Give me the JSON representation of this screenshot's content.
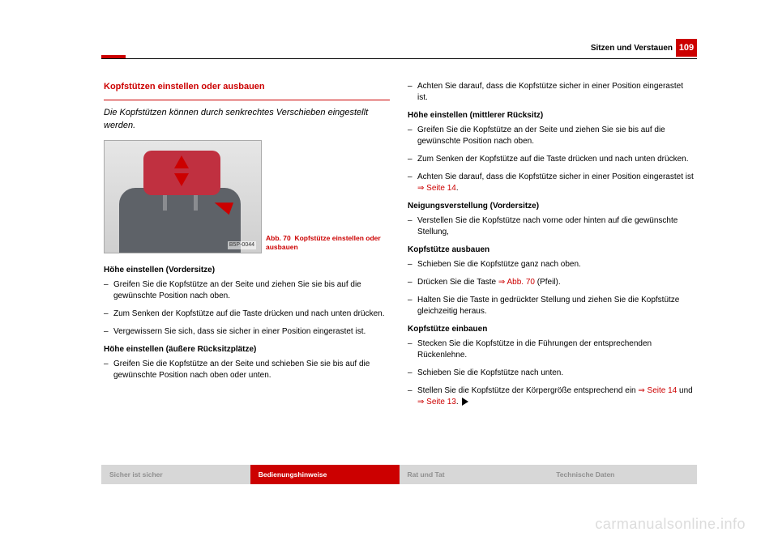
{
  "header": {
    "chapter": "Sitzen und Verstauen",
    "page_number": "109"
  },
  "figure": {
    "code": "B5P-0044",
    "caption_prefix": "Abb. 70",
    "caption_text": "Kopfstütze einstellen oder ausbauen"
  },
  "left": {
    "heading": "Kopfstützen einstellen oder ausbauen",
    "intro": "Die Kopfstützen können durch senkrechtes Verschieben eingestellt werden.",
    "sub1": "Höhe einstellen (Vordersitze)",
    "s1i1": "Greifen Sie die Kopfstütze an der Seite und ziehen Sie sie bis auf die gewünschte Position nach oben.",
    "s1i2": "Zum Senken der Kopfstütze auf die Taste drücken und nach unten drücken.",
    "s1i3": "Vergewissern Sie sich, dass sie sicher in einer Position eingerastet ist.",
    "sub2": "Höhe einstellen (äußere Rücksitzplätze)",
    "s2i1": "Greifen Sie die Kopfstütze an der Seite und schieben Sie sie bis auf die gewünschte Position nach oben oder unten."
  },
  "right": {
    "r1": "Achten Sie darauf, dass die Kopfstütze sicher in einer Position eingerastet ist.",
    "sub3": "Höhe einstellen (mittlerer Rücksitz)",
    "s3i1": "Greifen Sie die Kopfstütze an der Seite und ziehen Sie sie bis auf die gewünschte Position nach oben.",
    "s3i2": "Zum Senken der Kopfstütze auf die Taste drücken und nach unten drücken.",
    "s3i3a": "Achten Sie darauf, dass die Kopfstütze sicher in einer Position eingerastet ist ",
    "s3i3ref": "⇒ Seite 14",
    "s3i3b": ".",
    "sub4": "Neigungsverstellung (Vordersitze)",
    "s4i1": "Verstellen Sie die Kopfstütze nach vorne oder hinten auf die gewünschte Stellung,",
    "sub5": "Kopfstütze ausbauen",
    "s5i1": "Schieben Sie die Kopfstütze ganz nach oben.",
    "s5i2a": "Drücken Sie die Taste ",
    "s5i2ref": "⇒ Abb. 70",
    "s5i2b": " (Pfeil).",
    "s5i3": "Halten Sie die Taste in gedrückter Stellung und ziehen Sie die Kopfstütze gleichzeitig heraus.",
    "sub6": "Kopfstütze einbauen",
    "s6i1": "Stecken Sie die Kopfstütze in die Führungen der entsprechenden Rückenlehne.",
    "s6i2": "Schieben Sie die Kopfstütze nach unten.",
    "s6i3a": "Stellen Sie die Kopfstütze der Körpergröße entsprechend ein ",
    "s6i3r1": "⇒ Seite 14",
    "s6i3m": " und ",
    "s6i3r2": "⇒ Seite 13",
    "s6i3b": "."
  },
  "tabs": {
    "t1": "Sicher ist sicher",
    "t2": "Bedienungshinweise",
    "t3": "Rat und Tat",
    "t4": "Technische Daten"
  },
  "watermark": "carmanualsonline.info",
  "colors": {
    "accent": "#cc0000",
    "tab_bg": "#d7d7d7",
    "tab_text": "#8f8f8f"
  }
}
